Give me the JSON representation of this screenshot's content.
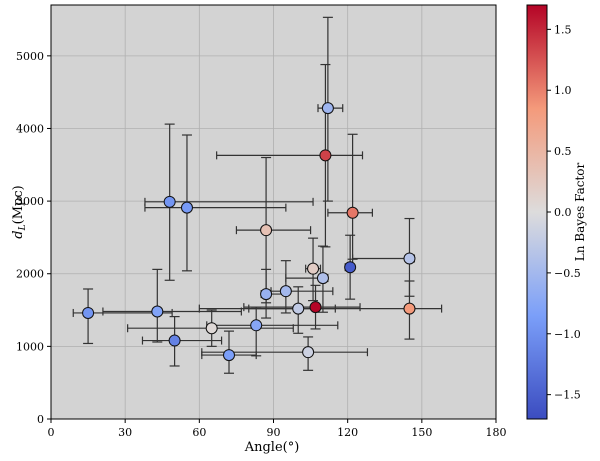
{
  "chart_data": {
    "type": "scatter",
    "title": "",
    "xlabel": "Angle(°)",
    "ylabel": "d_L(Mpc)",
    "ylabel_main": "d",
    "ylabel_sub": "L",
    "ylabel_rest": "(Mpc)",
    "xlim": [
      0,
      180
    ],
    "ylim": [
      0,
      5700
    ],
    "xticks": [
      0,
      30,
      60,
      90,
      120,
      150,
      180
    ],
    "yticks": [
      0,
      1000,
      2000,
      3000,
      4000,
      5000
    ],
    "grid": true,
    "background": "#d3d3d3",
    "colorbar": {
      "label": "Ln Bayes Factor",
      "min": -1.7,
      "max": 1.7,
      "ticks": [
        -1.5,
        -1.0,
        -0.5,
        0.0,
        0.5,
        1.0,
        1.5
      ],
      "tick_labels": [
        "−1.5",
        "−1.0",
        "−0.5",
        "0.0",
        "0.5",
        "1.0",
        "1.5"
      ],
      "colormap": "coolwarm",
      "stops": [
        {
          "v": 0.0,
          "c": "#3b4cc0"
        },
        {
          "v": 0.25,
          "c": "#7b9ff9"
        },
        {
          "v": 0.5,
          "c": "#dddcdc"
        },
        {
          "v": 0.75,
          "c": "#f49a7b"
        },
        {
          "v": 1.0,
          "c": "#b40426"
        }
      ]
    },
    "points": [
      {
        "x": 112,
        "y": 4280,
        "xerr": [
          4,
          6
        ],
        "yerr": [
          1280,
          1250
        ],
        "c": -0.55
      },
      {
        "x": 111,
        "y": 3630,
        "xerr": [
          44,
          15
        ],
        "yerr": [
          1260,
          1250
        ],
        "c": 1.35
      },
      {
        "x": 48,
        "y": 2990,
        "xerr": [
          10,
          58
        ],
        "yerr": [
          1080,
          1070
        ],
        "c": -0.95
      },
      {
        "x": 55,
        "y": 2910,
        "xerr": [
          17,
          40
        ],
        "yerr": [
          870,
          1000
        ],
        "c": -0.9
      },
      {
        "x": 122,
        "y": 2840,
        "xerr": [
          10,
          8
        ],
        "yerr": [
          640,
          1080
        ],
        "c": 1.05
      },
      {
        "x": 87,
        "y": 2600,
        "xerr": [
          12,
          18
        ],
        "yerr": [
          1000,
          1000
        ],
        "c": 0.35
      },
      {
        "x": 145,
        "y": 2210,
        "xerr": [
          23,
          2
        ],
        "yerr": [
          520,
          550
        ],
        "c": -0.35
      },
      {
        "x": 106,
        "y": 2070,
        "xerr": [
          3,
          3
        ],
        "yerr": [
          440,
          420
        ],
        "c": 0.2
      },
      {
        "x": 121,
        "y": 2090,
        "xerr": [
          2,
          1
        ],
        "yerr": [
          440,
          440
        ],
        "c": -1.55
      },
      {
        "x": 110,
        "y": 1940,
        "xerr": [
          15,
          2
        ],
        "yerr": [
          470,
          440
        ],
        "c": -0.4
      },
      {
        "x": 95,
        "y": 1760,
        "xerr": [
          6,
          19
        ],
        "yerr": [
          300,
          420
        ],
        "c": -0.5
      },
      {
        "x": 87,
        "y": 1720,
        "xerr": [
          2,
          8
        ],
        "yerr": [
          330,
          340
        ],
        "c": -0.6
      },
      {
        "x": 145,
        "y": 1520,
        "xerr": [
          65,
          13
        ],
        "yerr": [
          420,
          380
        ],
        "c": 0.85
      },
      {
        "x": 107,
        "y": 1540,
        "xerr": [
          29,
          18
        ],
        "yerr": [
          300,
          300
        ],
        "c": 1.7
      },
      {
        "x": 100,
        "y": 1520,
        "xerr": [
          40,
          15
        ],
        "yerr": [
          340,
          300
        ],
        "c": -0.25
      },
      {
        "x": 15,
        "y": 1460,
        "xerr": [
          6,
          34
        ],
        "yerr": [
          420,
          330
        ],
        "c": -0.95
      },
      {
        "x": 43,
        "y": 1480,
        "xerr": [
          22,
          34
        ],
        "yerr": [
          420,
          580
        ],
        "c": -0.8
      },
      {
        "x": 83,
        "y": 1290,
        "xerr": [
          20,
          33
        ],
        "yerr": [
          420,
          250
        ],
        "c": -0.75
      },
      {
        "x": 65,
        "y": 1250,
        "xerr": [
          34,
          33
        ],
        "yerr": [
          250,
          250
        ],
        "c": 0.05
      },
      {
        "x": 50,
        "y": 1080,
        "xerr": [
          13,
          19
        ],
        "yerr": [
          350,
          330
        ],
        "c": -1.15
      },
      {
        "x": 72,
        "y": 880,
        "xerr": [
          11,
          11
        ],
        "yerr": [
          250,
          330
        ],
        "c": -0.85
      },
      {
        "x": 104,
        "y": 920,
        "xerr": [
          43,
          24
        ],
        "yerr": [
          250,
          210
        ],
        "c": -0.15
      }
    ]
  }
}
